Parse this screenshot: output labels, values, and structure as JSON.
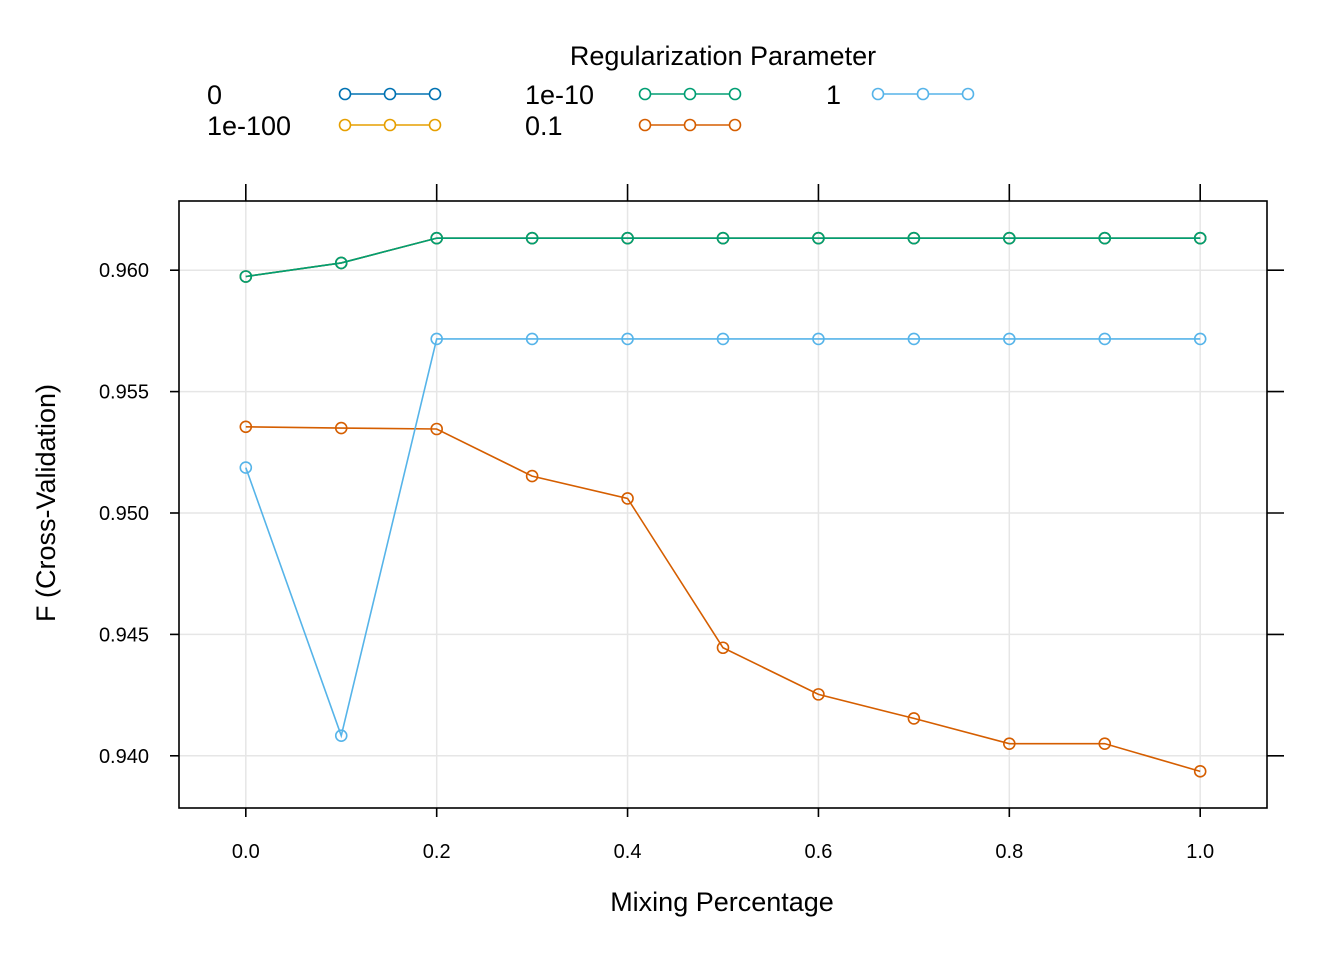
{
  "chart_data": {
    "type": "line",
    "xlabel": "Mixing Percentage",
    "ylabel": "F (Cross-Validation)",
    "xlim": [
      -0.07,
      1.07
    ],
    "ylim": [
      0.93785,
      0.96285
    ],
    "x_ticks": [
      0.0,
      0.2,
      0.4,
      0.6,
      0.8,
      1.0
    ],
    "x_tick_labels": [
      "0.0",
      "0.2",
      "0.4",
      "0.6",
      "0.8",
      "1.0"
    ],
    "y_ticks": [
      0.94,
      0.945,
      0.95,
      0.955,
      0.96
    ],
    "y_tick_labels": [
      "0.940",
      "0.945",
      "0.950",
      "0.955",
      "0.960"
    ],
    "grid": true,
    "legend": {
      "title": "Regularization Parameter",
      "placement": "top"
    },
    "x": [
      0.0,
      0.1,
      0.2,
      0.3,
      0.4,
      0.5,
      0.6,
      0.7,
      0.8,
      0.9,
      1.0
    ],
    "series": [
      {
        "name": "0",
        "color": "#0072B2",
        "values": [
          0.95974,
          0.9603,
          0.96132,
          0.96132,
          0.96132,
          0.96132,
          0.96132,
          0.96132,
          0.96132,
          0.96132,
          0.96132
        ]
      },
      {
        "name": "1e-100",
        "color": "#E69F00",
        "values": [
          0.95974,
          0.9603,
          0.96132,
          0.96132,
          0.96132,
          0.96132,
          0.96132,
          0.96132,
          0.96132,
          0.96132,
          0.96132
        ]
      },
      {
        "name": "1e-10",
        "color": "#009E73",
        "values": [
          0.95974,
          0.9603,
          0.96132,
          0.96132,
          0.96132,
          0.96132,
          0.96132,
          0.96132,
          0.96132,
          0.96132,
          0.96132
        ]
      },
      {
        "name": "0.1",
        "color": "#D55E00",
        "values": [
          0.95355,
          0.9535,
          0.95346,
          0.95152,
          0.9506,
          0.94445,
          0.94253,
          0.94154,
          0.9405,
          0.9405,
          0.93936
        ]
      },
      {
        "name": "1",
        "color": "#56B4E9",
        "values": [
          0.95187,
          0.94083,
          0.95717,
          0.95717,
          0.95717,
          0.95717,
          0.95717,
          0.95717,
          0.95717,
          0.95717,
          0.95717
        ]
      }
    ]
  }
}
